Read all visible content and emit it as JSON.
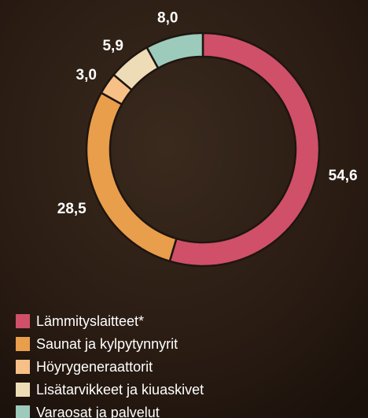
{
  "chart_data": {
    "type": "donut",
    "categories": [
      "Lämmityslaitteet*",
      "Saunat ja kylpytynnyrit",
      "Höyrygeneraattorit",
      "Lisätarvikkeet ja kiuaskivet",
      "Varaosat ja palvelut"
    ],
    "values": [
      54.6,
      28.5,
      3.0,
      5.9,
      8.0
    ],
    "value_labels": [
      "54,6",
      "28,5",
      "3,0",
      "5,9",
      "8,0"
    ],
    "colors": [
      "#cf5068",
      "#e89e4a",
      "#f6c086",
      "#eedcb6",
      "#9ccabb"
    ]
  }
}
